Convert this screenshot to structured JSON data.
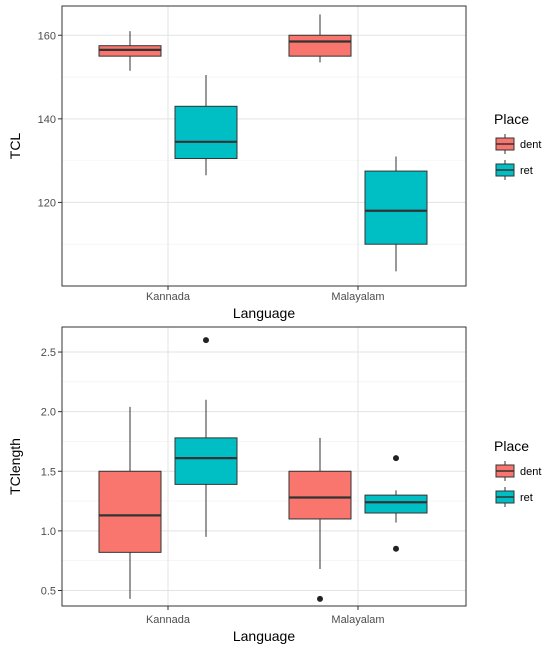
{
  "chart_data": [
    {
      "type": "boxplot",
      "xlabel": "Language",
      "ylabel": "TCL",
      "ylim": [
        100,
        167
      ],
      "yticks": [
        120,
        140,
        160
      ],
      "categories": [
        "Kannada",
        "Malayalam"
      ],
      "legend": {
        "title": "Place",
        "placement": "right",
        "entries": [
          "dent",
          "ret"
        ]
      },
      "grid": true,
      "series": [
        {
          "name": "dent",
          "color": "#F8766D",
          "boxes": [
            {
              "category": "Kannada",
              "whisker_low": 151.5,
              "q1": 155,
              "median": 156.5,
              "q3": 157.5,
              "whisker_high": 161,
              "outliers": []
            },
            {
              "category": "Malayalam",
              "whisker_low": 153.5,
              "q1": 155,
              "median": 158.5,
              "q3": 160,
              "whisker_high": 165,
              "outliers": []
            }
          ]
        },
        {
          "name": "ret",
          "color": "#00BFC4",
          "boxes": [
            {
              "category": "Kannada",
              "whisker_low": 126.5,
              "q1": 130.5,
              "median": 134.5,
              "q3": 143,
              "whisker_high": 150.5,
              "outliers": []
            },
            {
              "category": "Malayalam",
              "whisker_low": 103.5,
              "q1": 110,
              "median": 118,
              "q3": 127.5,
              "whisker_high": 131,
              "outliers": []
            }
          ]
        }
      ]
    },
    {
      "type": "boxplot",
      "xlabel": "Language",
      "ylabel": "TClength",
      "ylim": [
        0.37,
        2.71
      ],
      "yticks": [
        0.5,
        1.0,
        1.5,
        2.0,
        2.5
      ],
      "ytick_labels": [
        "0.5",
        "1.0",
        "1.5",
        "2.0",
        "2.5"
      ],
      "categories": [
        "Kannada",
        "Malayalam"
      ],
      "legend": {
        "title": "Place",
        "placement": "right",
        "entries": [
          "dent",
          "ret"
        ]
      },
      "grid": true,
      "series": [
        {
          "name": "dent",
          "color": "#F8766D",
          "boxes": [
            {
              "category": "Kannada",
              "whisker_low": 0.43,
              "q1": 0.82,
              "median": 1.13,
              "q3": 1.5,
              "whisker_high": 2.04,
              "outliers": []
            },
            {
              "category": "Malayalam",
              "whisker_low": 0.68,
              "q1": 1.1,
              "median": 1.28,
              "q3": 1.5,
              "whisker_high": 1.78,
              "outliers": [
                0.43
              ]
            }
          ]
        },
        {
          "name": "ret",
          "color": "#00BFC4",
          "boxes": [
            {
              "category": "Kannada",
              "whisker_low": 0.95,
              "q1": 1.39,
              "median": 1.61,
              "q3": 1.78,
              "whisker_high": 2.1,
              "outliers": [
                2.6
              ]
            },
            {
              "category": "Malayalam",
              "whisker_low": 1.07,
              "q1": 1.15,
              "median": 1.24,
              "q3": 1.3,
              "whisker_high": 1.34,
              "outliers": [
                1.61,
                0.85
              ]
            }
          ]
        }
      ]
    }
  ]
}
